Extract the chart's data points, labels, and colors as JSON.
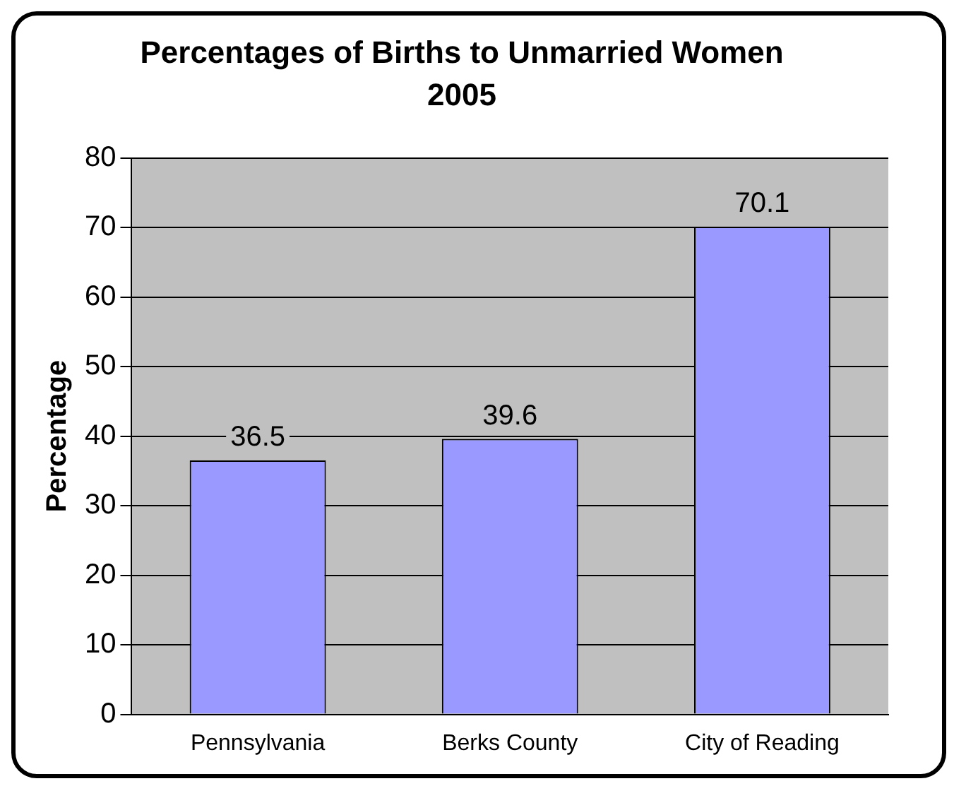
{
  "chart_data": {
    "type": "bar",
    "title": "Percentages of Births to Unmarried Women",
    "subtitle": "2005",
    "ylabel": "Percentage",
    "categories": [
      "Pennsylvania",
      "Berks County",
      "City of Reading"
    ],
    "values": [
      36.5,
      39.6,
      70.1
    ],
    "color": "#9999ff",
    "ylim": [
      0,
      80
    ],
    "yticks": [
      0,
      10,
      20,
      30,
      40,
      50,
      60,
      70,
      80
    ],
    "grid": "y",
    "data_labels": true,
    "legend": false
  }
}
